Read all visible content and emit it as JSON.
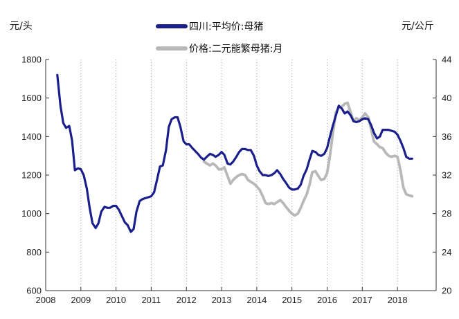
{
  "chart_data": {
    "type": "line",
    "left_unit": "元/头",
    "right_unit": "元/公斤",
    "x_labels": [
      "2008",
      "2009",
      "2010",
      "2011",
      "2012",
      "2013",
      "2014",
      "2015",
      "2016",
      "2017",
      "2018"
    ],
    "xlim": [
      2008,
      2019.1
    ],
    "y_left_ticks": [
      "600",
      "800",
      "1000",
      "1200",
      "1400",
      "1600",
      "1800"
    ],
    "y_left_lim": [
      600,
      1800
    ],
    "y_right_ticks": [
      "20",
      "24",
      "28",
      "32",
      "36",
      "40",
      "44"
    ],
    "y_right_lim": [
      20,
      44
    ],
    "grid": "dotted vertical at each year",
    "series": [
      {
        "name": "四川:平均价:母猪",
        "axis": "left",
        "color": "#1a1f8c",
        "points": [
          [
            2008.33,
            1720
          ],
          [
            2008.42,
            1560
          ],
          [
            2008.5,
            1470
          ],
          [
            2008.58,
            1445
          ],
          [
            2008.67,
            1455
          ],
          [
            2008.75,
            1380
          ],
          [
            2008.83,
            1225
          ],
          [
            2008.92,
            1235
          ],
          [
            2009.0,
            1230
          ],
          [
            2009.08,
            1200
          ],
          [
            2009.17,
            1130
          ],
          [
            2009.25,
            1030
          ],
          [
            2009.33,
            950
          ],
          [
            2009.42,
            925
          ],
          [
            2009.5,
            950
          ],
          [
            2009.58,
            1010
          ],
          [
            2009.67,
            1035
          ],
          [
            2009.75,
            1030
          ],
          [
            2009.83,
            1030
          ],
          [
            2009.92,
            1040
          ],
          [
            2010.0,
            1040
          ],
          [
            2010.08,
            1020
          ],
          [
            2010.17,
            985
          ],
          [
            2010.25,
            955
          ],
          [
            2010.33,
            940
          ],
          [
            2010.42,
            905
          ],
          [
            2010.5,
            920
          ],
          [
            2010.58,
            1010
          ],
          [
            2010.67,
            1065
          ],
          [
            2010.75,
            1075
          ],
          [
            2010.83,
            1080
          ],
          [
            2010.92,
            1085
          ],
          [
            2011.0,
            1090
          ],
          [
            2011.08,
            1110
          ],
          [
            2011.17,
            1180
          ],
          [
            2011.25,
            1245
          ],
          [
            2011.33,
            1250
          ],
          [
            2011.42,
            1330
          ],
          [
            2011.5,
            1450
          ],
          [
            2011.58,
            1490
          ],
          [
            2011.67,
            1500
          ],
          [
            2011.75,
            1500
          ],
          [
            2011.83,
            1450
          ],
          [
            2011.92,
            1375
          ],
          [
            2012.0,
            1360
          ],
          [
            2012.08,
            1360
          ],
          [
            2012.17,
            1340
          ],
          [
            2012.25,
            1325
          ],
          [
            2012.33,
            1310
          ],
          [
            2012.42,
            1290
          ],
          [
            2012.5,
            1280
          ],
          [
            2012.58,
            1295
          ],
          [
            2012.67,
            1310
          ],
          [
            2012.75,
            1305
          ],
          [
            2012.83,
            1295
          ],
          [
            2012.92,
            1305
          ],
          [
            2013.0,
            1320
          ],
          [
            2013.08,
            1305
          ],
          [
            2013.17,
            1260
          ],
          [
            2013.25,
            1255
          ],
          [
            2013.33,
            1270
          ],
          [
            2013.42,
            1295
          ],
          [
            2013.5,
            1320
          ],
          [
            2013.58,
            1335
          ],
          [
            2013.67,
            1335
          ],
          [
            2013.75,
            1330
          ],
          [
            2013.83,
            1330
          ],
          [
            2013.92,
            1300
          ],
          [
            2014.0,
            1250
          ],
          [
            2014.08,
            1220
          ],
          [
            2014.17,
            1200
          ],
          [
            2014.25,
            1200
          ],
          [
            2014.33,
            1195
          ],
          [
            2014.42,
            1200
          ],
          [
            2014.5,
            1210
          ],
          [
            2014.58,
            1225
          ],
          [
            2014.67,
            1205
          ],
          [
            2014.75,
            1180
          ],
          [
            2014.83,
            1160
          ],
          [
            2014.92,
            1135
          ],
          [
            2015.0,
            1125
          ],
          [
            2015.08,
            1125
          ],
          [
            2015.17,
            1130
          ],
          [
            2015.25,
            1150
          ],
          [
            2015.33,
            1195
          ],
          [
            2015.42,
            1230
          ],
          [
            2015.5,
            1280
          ],
          [
            2015.58,
            1325
          ],
          [
            2015.67,
            1320
          ],
          [
            2015.75,
            1305
          ],
          [
            2015.83,
            1300
          ],
          [
            2015.92,
            1310
          ],
          [
            2016.0,
            1340
          ],
          [
            2016.08,
            1400
          ],
          [
            2016.17,
            1460
          ],
          [
            2016.25,
            1510
          ],
          [
            2016.33,
            1560
          ],
          [
            2016.42,
            1545
          ],
          [
            2016.5,
            1520
          ],
          [
            2016.58,
            1530
          ],
          [
            2016.67,
            1510
          ],
          [
            2016.75,
            1480
          ],
          [
            2016.83,
            1475
          ],
          [
            2016.92,
            1480
          ],
          [
            2017.0,
            1490
          ],
          [
            2017.08,
            1495
          ],
          [
            2017.17,
            1490
          ],
          [
            2017.25,
            1460
          ],
          [
            2017.33,
            1420
          ],
          [
            2017.42,
            1390
          ],
          [
            2017.5,
            1400
          ],
          [
            2017.58,
            1435
          ],
          [
            2017.67,
            1435
          ],
          [
            2017.75,
            1435
          ],
          [
            2017.83,
            1430
          ],
          [
            2017.92,
            1425
          ],
          [
            2018.0,
            1410
          ],
          [
            2018.08,
            1380
          ],
          [
            2018.17,
            1340
          ],
          [
            2018.25,
            1295
          ],
          [
            2018.33,
            1285
          ],
          [
            2018.42,
            1285
          ]
        ]
      },
      {
        "name": "价格:二元能繁母猪:月",
        "axis": "right",
        "color": "#b8b8b8",
        "points": [
          [
            2012.5,
            33.4
          ],
          [
            2012.58,
            33.2
          ],
          [
            2012.67,
            33.0
          ],
          [
            2012.75,
            33.2
          ],
          [
            2012.83,
            33.0
          ],
          [
            2012.92,
            32.6
          ],
          [
            2013.0,
            32.6
          ],
          [
            2013.08,
            32.8
          ],
          [
            2013.17,
            31.9
          ],
          [
            2013.25,
            31.1
          ],
          [
            2013.33,
            31.5
          ],
          [
            2013.42,
            31.8
          ],
          [
            2013.5,
            32.0
          ],
          [
            2013.58,
            32.1
          ],
          [
            2013.67,
            32.0
          ],
          [
            2013.75,
            31.5
          ],
          [
            2013.83,
            31.3
          ],
          [
            2013.92,
            31.1
          ],
          [
            2014.0,
            30.8
          ],
          [
            2014.08,
            30.5
          ],
          [
            2014.17,
            29.8
          ],
          [
            2014.25,
            29.1
          ],
          [
            2014.33,
            29.0
          ],
          [
            2014.42,
            29.1
          ],
          [
            2014.5,
            29.0
          ],
          [
            2014.58,
            29.2
          ],
          [
            2014.67,
            29.4
          ],
          [
            2014.75,
            29.1
          ],
          [
            2014.83,
            28.7
          ],
          [
            2014.92,
            28.3
          ],
          [
            2015.0,
            28.0
          ],
          [
            2015.08,
            27.8
          ],
          [
            2015.17,
            28.0
          ],
          [
            2015.25,
            28.6
          ],
          [
            2015.33,
            29.3
          ],
          [
            2015.42,
            30.0
          ],
          [
            2015.5,
            31.0
          ],
          [
            2015.58,
            32.3
          ],
          [
            2015.67,
            32.4
          ],
          [
            2015.75,
            31.9
          ],
          [
            2015.83,
            31.5
          ],
          [
            2015.92,
            31.6
          ],
          [
            2016.0,
            32.2
          ],
          [
            2016.08,
            34.0
          ],
          [
            2016.17,
            36.5
          ],
          [
            2016.25,
            38.5
          ],
          [
            2016.33,
            39.0
          ],
          [
            2016.42,
            39.1
          ],
          [
            2016.5,
            39.4
          ],
          [
            2016.58,
            39.5
          ],
          [
            2016.67,
            38.5
          ],
          [
            2016.75,
            37.6
          ],
          [
            2016.83,
            37.9
          ],
          [
            2016.92,
            37.7
          ],
          [
            2017.0,
            38.0
          ],
          [
            2017.08,
            38.4
          ],
          [
            2017.17,
            38.0
          ],
          [
            2017.25,
            36.8
          ],
          [
            2017.33,
            35.5
          ],
          [
            2017.42,
            35.2
          ],
          [
            2017.5,
            34.9
          ],
          [
            2017.58,
            34.8
          ],
          [
            2017.67,
            34.3
          ],
          [
            2017.75,
            34.0
          ],
          [
            2017.83,
            33.9
          ],
          [
            2017.92,
            34.0
          ],
          [
            2018.0,
            33.9
          ],
          [
            2018.08,
            32.6
          ],
          [
            2018.17,
            30.7
          ],
          [
            2018.25,
            30.0
          ],
          [
            2018.33,
            29.9
          ],
          [
            2018.42,
            29.8
          ]
        ]
      }
    ]
  }
}
